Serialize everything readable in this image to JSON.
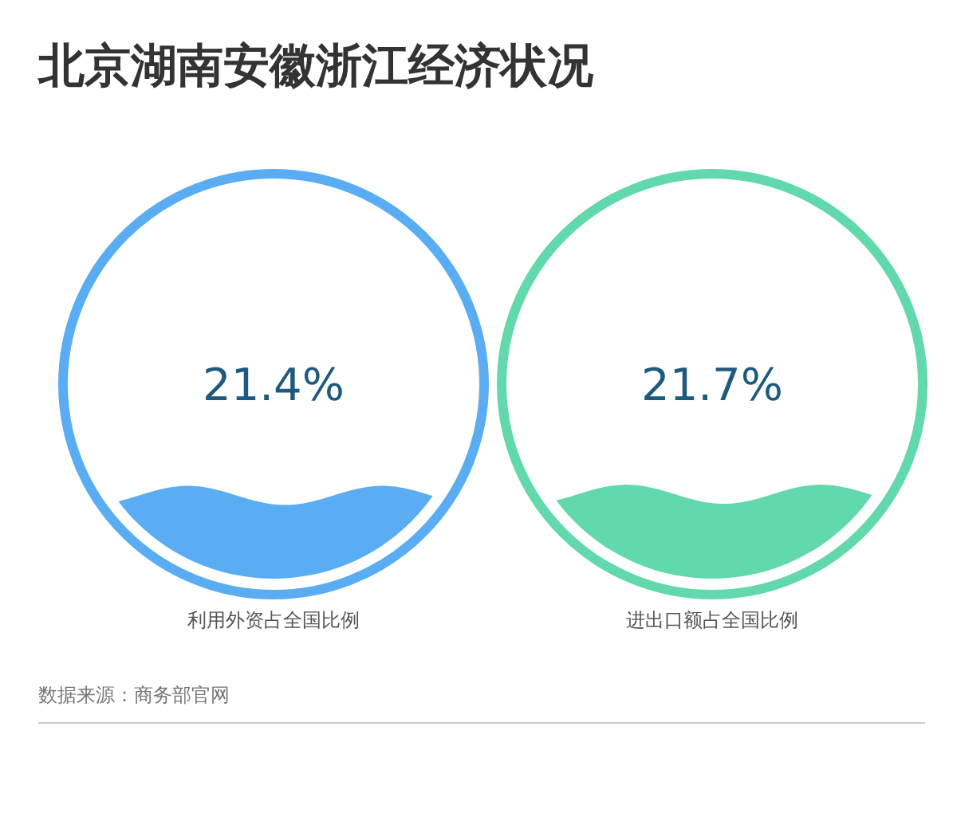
{
  "chart_data": [
    {
      "type": "other",
      "title": "北京湖南安徽浙江经济状况",
      "categories": [
        "利用外资占全国比例"
      ],
      "values": [
        21.4
      ],
      "value_labels": [
        "21.4%"
      ],
      "color": "#5aadf2"
    },
    {
      "type": "other",
      "categories": [
        "进出口额占全国比例"
      ],
      "values": [
        21.7
      ],
      "value_labels": [
        "21.7%"
      ],
      "color": "#62d8ad",
      "annotations": [
        "数据来源：商务部官网"
      ]
    }
  ]
}
